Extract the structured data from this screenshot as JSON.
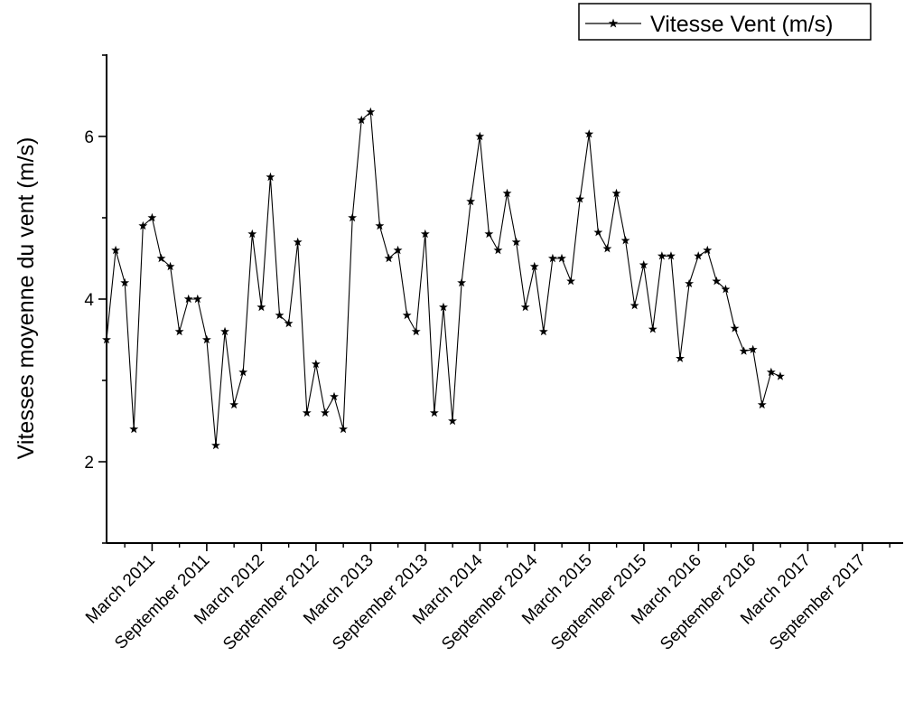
{
  "chart_data": {
    "type": "line",
    "title": "",
    "xlabel": "",
    "ylabel": "Vitesses moyenne du vent (m/s)",
    "ylim": [
      1,
      7
    ],
    "yticks": [
      2,
      4,
      6
    ],
    "xticks": [
      "March 2011",
      "September 2011",
      "March 2012",
      "September 2012",
      "March 2013",
      "September 2013",
      "March 2014",
      "September 2014",
      "March 2015",
      "September 2015",
      "March 2016",
      "September 2016",
      "March 2017",
      "September 2017"
    ],
    "legend": {
      "position": "top-right",
      "marker": "star",
      "color": "#000000"
    },
    "series": [
      {
        "name": "Vitesse Vent (m/s)",
        "color": "#000000",
        "marker": "star",
        "x": [
          "Oct 2010",
          "Nov 2010",
          "Dec 2010",
          "Jan 2011",
          "Feb 2011",
          "Mar 2011",
          "Apr 2011",
          "May 2011",
          "Jun 2011",
          "Jul 2011",
          "Aug 2011",
          "Sep 2011",
          "Oct 2011",
          "Nov 2011",
          "Dec 2011",
          "Jan 2012",
          "Feb 2012",
          "Mar 2012",
          "Apr 2012",
          "May 2012",
          "Jun 2012",
          "Jul 2012",
          "Aug 2012",
          "Sep 2012",
          "Oct 2012",
          "Nov 2012",
          "Dec 2012",
          "Jan 2013",
          "Feb 2013",
          "Mar 2013",
          "Apr 2013",
          "May 2013",
          "Jun 2013",
          "Jul 2013",
          "Aug 2013",
          "Sep 2013",
          "Oct 2013",
          "Nov 2013",
          "Dec 2013",
          "Jan 2014",
          "Feb 2014",
          "Mar 2014",
          "Apr 2014",
          "May 2014",
          "Jun 2014",
          "Jul 2014",
          "Aug 2014",
          "Sep 2014",
          "Oct 2014",
          "Nov 2014",
          "Dec 2014",
          "Jan 2015",
          "Feb 2015",
          "Mar 2015",
          "Apr 2015",
          "May 2015",
          "Jun 2015",
          "Jul 2015",
          "Aug 2015",
          "Sep 2015",
          "Oct 2015",
          "Nov 2015",
          "Dec 2015",
          "Jan 2016",
          "Feb 2016",
          "Mar 2016",
          "Apr 2016",
          "May 2016",
          "Jun 2016",
          "Jul 2016",
          "Aug 2016",
          "Sep 2016",
          "Oct 2016",
          "Nov 2016",
          "Dec 2016"
        ],
        "y": [
          3.5,
          4.6,
          4.2,
          2.4,
          4.9,
          5.0,
          4.5,
          4.4,
          3.6,
          4.0,
          4.0,
          3.5,
          2.2,
          3.6,
          2.7,
          3.1,
          4.8,
          3.9,
          5.5,
          3.8,
          3.7,
          4.7,
          2.6,
          3.2,
          2.6,
          2.8,
          2.4,
          5.0,
          6.2,
          6.3,
          4.9,
          4.5,
          4.6,
          3.8,
          3.6,
          4.8,
          2.6,
          3.9,
          2.5,
          4.2,
          5.2,
          6.0,
          4.8,
          4.6,
          5.3,
          4.7,
          3.9,
          4.4,
          3.6,
          4.5,
          4.5,
          4.22,
          5.23,
          6.03,
          4.82,
          4.62,
          5.3,
          4.72,
          3.92,
          4.42,
          3.63,
          4.53,
          4.53,
          3.27,
          4.19,
          4.53,
          4.6,
          4.22,
          4.12,
          3.64,
          3.36,
          3.38,
          2.7,
          3.1,
          3.05
        ]
      }
    ]
  }
}
